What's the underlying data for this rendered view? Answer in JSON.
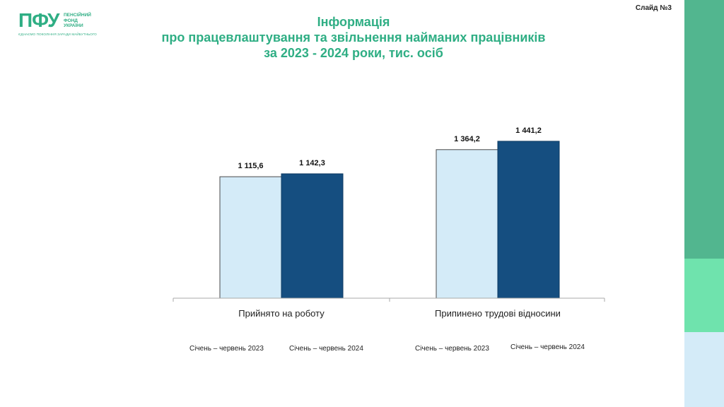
{
  "header": {
    "logo_main": "ПФУ",
    "logo_side_lines": [
      "ПЕНСІЙНИЙ",
      "ФОНД",
      "УКРАЇНИ"
    ],
    "logo_tagline": "ЄДНАЄМО ПОКОЛІННЯ ЗАРАДИ МАЙБУТНЬОГО",
    "slide_number": "Слайд №3"
  },
  "title_lines": [
    "Інформація",
    "про працевлаштування та звільнення найманих працівників",
    "за 2023 - 2024  роки,  тис. осіб"
  ],
  "colors": {
    "accent": "#2fae84",
    "series_2023": "#d4ebf8",
    "series_2024": "#154e80",
    "sidebar_top": "#52b68f",
    "sidebar_mid": "#6fe3ad",
    "sidebar_bottom": "#d4ebf8"
  },
  "chart_data": {
    "type": "bar",
    "title": "",
    "xlabel": "",
    "ylabel": "",
    "ylim": [
      0,
      1600
    ],
    "grid": false,
    "categories": [
      "Прийнято на роботу",
      "Припинено трудові відносини"
    ],
    "series": [
      {
        "name": "Січень – червень 2023",
        "values": [
          1115.6,
          1364.2
        ],
        "labels": [
          "1 115,6",
          "1 364,2"
        ]
      },
      {
        "name": "Січень – червень 2024",
        "values": [
          1142.3,
          1441.2
        ],
        "labels": [
          "1 142,3",
          "1 441,2"
        ]
      }
    ],
    "legend_placement": "bottom"
  }
}
